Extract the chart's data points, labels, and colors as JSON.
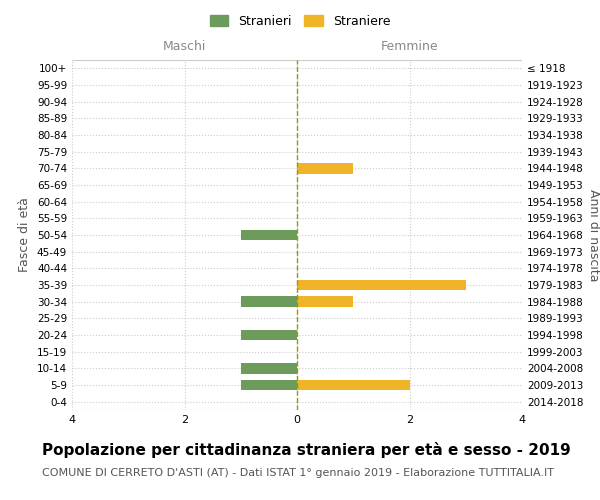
{
  "age_groups": [
    "0-4",
    "5-9",
    "10-14",
    "15-19",
    "20-24",
    "25-29",
    "30-34",
    "35-39",
    "40-44",
    "45-49",
    "50-54",
    "55-59",
    "60-64",
    "65-69",
    "70-74",
    "75-79",
    "80-84",
    "85-89",
    "90-94",
    "95-99",
    "100+"
  ],
  "birth_years": [
    "2014-2018",
    "2009-2013",
    "2004-2008",
    "1999-2003",
    "1994-1998",
    "1989-1993",
    "1984-1988",
    "1979-1983",
    "1974-1978",
    "1969-1973",
    "1964-1968",
    "1959-1963",
    "1954-1958",
    "1949-1953",
    "1944-1948",
    "1939-1943",
    "1934-1938",
    "1929-1933",
    "1924-1928",
    "1919-1923",
    "≤ 1918"
  ],
  "maschi": [
    0,
    1,
    1,
    0,
    1,
    0,
    1,
    0,
    0,
    0,
    1,
    0,
    0,
    0,
    0,
    0,
    0,
    0,
    0,
    0,
    0
  ],
  "femmine": [
    0,
    2,
    0,
    0,
    0,
    0,
    1,
    3,
    0,
    0,
    0,
    0,
    0,
    0,
    1,
    0,
    0,
    0,
    0,
    0,
    0
  ],
  "color_maschi": "#6d9b5c",
  "color_femmine": "#f0b429",
  "xlim": 4,
  "title": "Popolazione per cittadinanza straniera per età e sesso - 2019",
  "subtitle": "COMUNE DI CERRETO D'ASTI (AT) - Dati ISTAT 1° gennaio 2019 - Elaborazione TUTTITALIA.IT",
  "ylabel_left": "Fasce di età",
  "ylabel_right": "Anni di nascita",
  "legend_stranieri": "Stranieri",
  "legend_straniere": "Straniere",
  "label_maschi": "Maschi",
  "label_femmine": "Femmine",
  "background_color": "#ffffff",
  "grid_color": "#cccccc",
  "title_fontsize": 11,
  "subtitle_fontsize": 8
}
